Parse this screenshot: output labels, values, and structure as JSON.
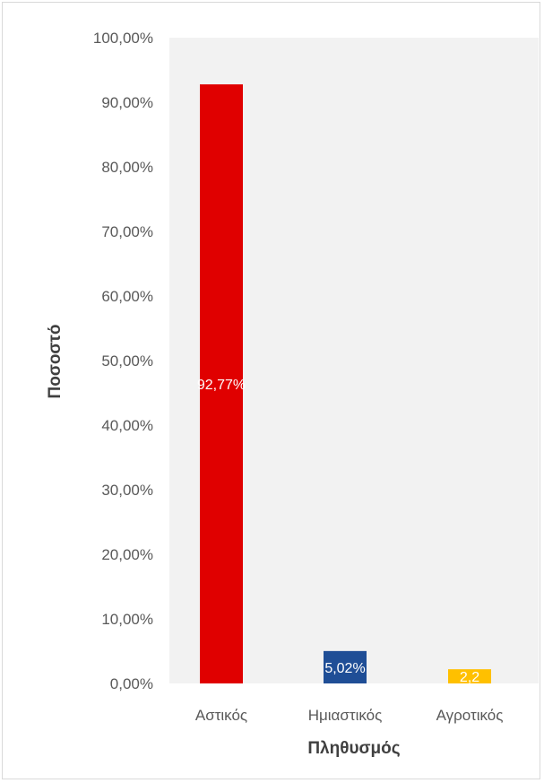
{
  "chart_data": {
    "type": "bar",
    "categories": [
      "Αστικός",
      "Ημιαστικός",
      "Αγροτικός"
    ],
    "values": [
      92.77,
      5.02,
      2.2
    ],
    "data_labels": [
      "92,77%",
      "5,02%",
      "2,2"
    ],
    "colors": [
      "#e00000",
      "#1f4e96",
      "#ffc000"
    ],
    "xlabel": "Πληθυσμός",
    "ylabel": "Ποσοστό",
    "ylim": [
      0,
      100
    ],
    "yticks": [
      0,
      10,
      20,
      30,
      40,
      50,
      60,
      70,
      80,
      90,
      100
    ],
    "ytick_labels": [
      "0,00%",
      "10,00%",
      "20,00%",
      "30,00%",
      "40,00%",
      "50,00%",
      "60,00%",
      "70,00%",
      "80,00%",
      "90,00%",
      "100,00%"
    ],
    "grid": false,
    "plot_background": "#f2f2f2",
    "legend": "none"
  }
}
